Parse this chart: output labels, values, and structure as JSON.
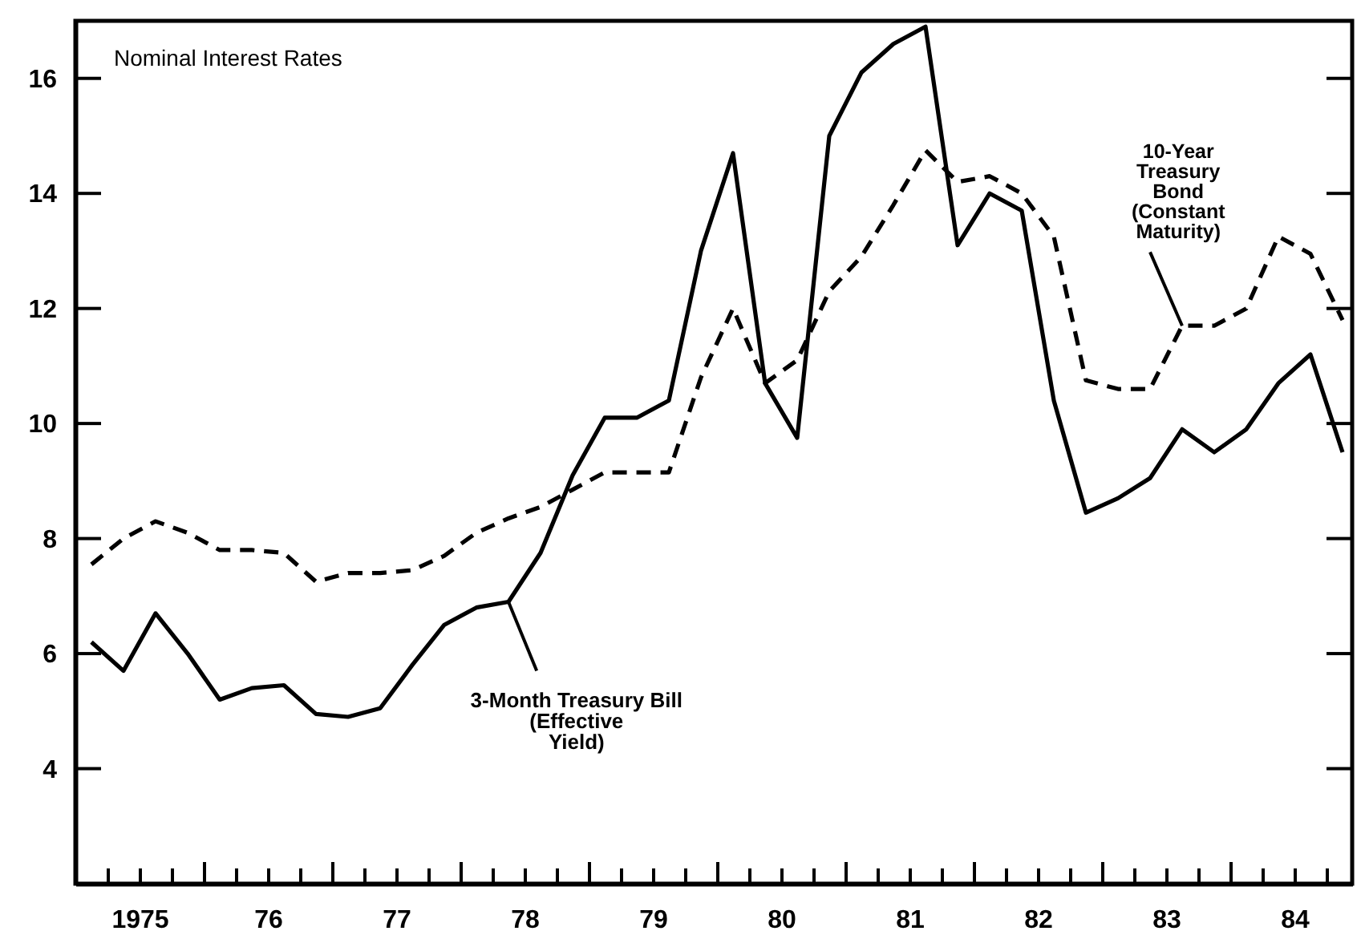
{
  "chart_data": {
    "type": "line",
    "title": "Nominal Interest Rates",
    "x": [
      1974.625,
      1974.875,
      1975.125,
      1975.375,
      1975.625,
      1975.875,
      1976.125,
      1976.375,
      1976.625,
      1976.875,
      1977.125,
      1977.375,
      1977.625,
      1977.875,
      1978.125,
      1978.375,
      1978.625,
      1978.875,
      1979.125,
      1979.375,
      1979.625,
      1979.875,
      1980.125,
      1980.375,
      1980.625,
      1980.875,
      1981.125,
      1981.375,
      1981.625,
      1981.875,
      1982.125,
      1982.375,
      1982.625,
      1982.875,
      1983.125,
      1983.375,
      1983.625,
      1983.875,
      1984.125,
      1984.375
    ],
    "series": [
      {
        "name": "3-Month Treasury Bill\n(Effective\nYield)",
        "color": "#000000",
        "line_style": "solid",
        "values": [
          6.2,
          5.7,
          6.7,
          6.0,
          5.2,
          5.4,
          5.45,
          4.95,
          4.9,
          5.05,
          5.8,
          6.5,
          6.8,
          6.9,
          7.75,
          9.1,
          10.1,
          10.1,
          10.4,
          13.0,
          14.7,
          10.7,
          9.75,
          15.0,
          16.1,
          16.6,
          16.9,
          13.1,
          14.0,
          13.7,
          10.4,
          8.45,
          8.7,
          9.05,
          9.9,
          9.5,
          9.9,
          10.7,
          11.2,
          9.5
        ]
      },
      {
        "name": "10-Year\nTreasury\nBond\n(Constant\nMaturity)",
        "color": "#000000",
        "line_style": "dashed",
        "values": [
          7.55,
          8.0,
          8.3,
          8.1,
          7.8,
          7.8,
          7.75,
          7.25,
          7.4,
          7.4,
          7.45,
          7.7,
          8.1,
          8.35,
          8.55,
          8.85,
          9.15,
          9.15,
          9.15,
          10.8,
          12.0,
          10.7,
          11.1,
          12.3,
          12.9,
          13.8,
          14.75,
          14.2,
          14.3,
          14.0,
          13.25,
          10.75,
          10.6,
          10.6,
          11.7,
          11.7,
          12.0,
          13.25,
          12.95,
          11.8
        ]
      }
    ],
    "xlim": [
      1974.5,
      1984.45
    ],
    "ylim": [
      2,
      17
    ],
    "yticks": [
      4,
      6,
      8,
      10,
      12,
      14,
      16
    ],
    "xticks": [
      {
        "value": 1974.75,
        "label": null
      },
      {
        "value": 1975,
        "label": "1975"
      },
      {
        "value": 1975.25,
        "label": null
      },
      {
        "value": 1975.5,
        "label": null
      },
      {
        "value": 1975.75,
        "label": null
      },
      {
        "value": 1976,
        "label": "76"
      },
      {
        "value": 1976.25,
        "label": null
      },
      {
        "value": 1976.5,
        "label": null
      },
      {
        "value": 1976.75,
        "label": null
      },
      {
        "value": 1977,
        "label": "77"
      },
      {
        "value": 1977.25,
        "label": null
      },
      {
        "value": 1977.5,
        "label": null
      },
      {
        "value": 1977.75,
        "label": null
      },
      {
        "value": 1978,
        "label": "78"
      },
      {
        "value": 1978.25,
        "label": null
      },
      {
        "value": 1978.5,
        "label": null
      },
      {
        "value": 1978.75,
        "label": null
      },
      {
        "value": 1979,
        "label": "79"
      },
      {
        "value": 1979.25,
        "label": null
      },
      {
        "value": 1979.5,
        "label": null
      },
      {
        "value": 1979.75,
        "label": null
      },
      {
        "value": 1980,
        "label": "80"
      },
      {
        "value": 1980.25,
        "label": null
      },
      {
        "value": 1980.5,
        "label": null
      },
      {
        "value": 1980.75,
        "label": null
      },
      {
        "value": 1981,
        "label": "81"
      },
      {
        "value": 1981.25,
        "label": null
      },
      {
        "value": 1981.5,
        "label": null
      },
      {
        "value": 1981.75,
        "label": null
      },
      {
        "value": 1982,
        "label": "82"
      },
      {
        "value": 1982.25,
        "label": null
      },
      {
        "value": 1982.5,
        "label": null
      },
      {
        "value": 1982.75,
        "label": null
      },
      {
        "value": 1983,
        "label": "83"
      },
      {
        "value": 1983.25,
        "label": null
      },
      {
        "value": 1983.5,
        "label": null
      },
      {
        "value": 1983.75,
        "label": null
      },
      {
        "value": 1984,
        "label": "84"
      },
      {
        "value": 1984.25,
        "label": null
      }
    ],
    "grid": false,
    "legend": false,
    "marker": "none"
  }
}
